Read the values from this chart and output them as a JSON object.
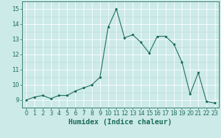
{
  "x": [
    0,
    1,
    2,
    3,
    4,
    5,
    6,
    7,
    8,
    9,
    10,
    11,
    12,
    13,
    14,
    15,
    16,
    17,
    18,
    19,
    20,
    21,
    22,
    23
  ],
  "y": [
    9.0,
    9.2,
    9.3,
    9.1,
    9.3,
    9.3,
    9.6,
    9.8,
    10.0,
    10.5,
    13.8,
    15.0,
    13.1,
    13.3,
    12.8,
    12.1,
    13.2,
    13.2,
    12.7,
    11.5,
    9.4,
    10.8,
    8.9,
    8.8
  ],
  "line_color": "#1a6b5a",
  "marker": "o",
  "marker_size": 2.0,
  "bg_color": "#cceae8",
  "grid_major_color": "#ffffff",
  "grid_minor_color": "#b8d8d5",
  "xlabel": "Humidex (Indice chaleur)",
  "xlim": [
    -0.5,
    23.5
  ],
  "ylim": [
    8.5,
    15.5
  ],
  "yticks": [
    9,
    10,
    11,
    12,
    13,
    14,
    15
  ],
  "xticks": [
    0,
    1,
    2,
    3,
    4,
    5,
    6,
    7,
    8,
    9,
    10,
    11,
    12,
    13,
    14,
    15,
    16,
    17,
    18,
    19,
    20,
    21,
    22,
    23
  ],
  "font_color": "#1a6b5a",
  "tick_fontsize": 6.0,
  "label_fontsize": 7.5,
  "linewidth": 0.8
}
